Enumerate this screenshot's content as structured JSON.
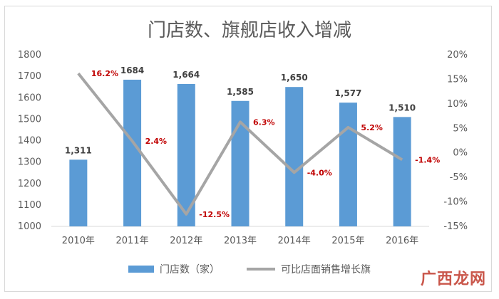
{
  "chart_data": {
    "type": "bar",
    "title": "门店数、旗舰店收入增减",
    "categories": [
      "2010年",
      "2011年",
      "2012年",
      "2013年",
      "2014年",
      "2015年",
      "2016年"
    ],
    "series": [
      {
        "name": "门店数（家）",
        "type": "bar",
        "axis": "left",
        "values": [
          1311,
          1684,
          1664,
          1585,
          1650,
          1577,
          1510
        ],
        "labels": [
          "1,311",
          "1684",
          "1,664",
          "1,585",
          "1,650",
          "1,577",
          "1,510"
        ],
        "color": "#5b9bd5"
      },
      {
        "name": "可比店面销售增长旗",
        "type": "line",
        "axis": "right",
        "values": [
          16.2,
          2.4,
          -12.5,
          6.3,
          -4.0,
          5.2,
          -1.4
        ],
        "labels": [
          "16.2%",
          "2.4%",
          "-12.5%",
          "6.3%",
          "-4.0%",
          "5.2%",
          "-1.4%"
        ],
        "color": "#a5a5a5"
      }
    ],
    "y_left": {
      "ylim": [
        1000,
        1800
      ],
      "ticks": [
        "1800",
        "1700",
        "1600",
        "1500",
        "1400",
        "1300",
        "1200",
        "1100",
        "1000"
      ]
    },
    "y_right": {
      "ylim": [
        -15,
        20
      ],
      "ticks": [
        "20%",
        "15%",
        "10%",
        "5%",
        "0%",
        "-5%",
        "-10%",
        "-15%"
      ]
    },
    "legend_position": "bottom",
    "grid": false,
    "label_color": "#c00000"
  },
  "watermark": "广西龙网"
}
